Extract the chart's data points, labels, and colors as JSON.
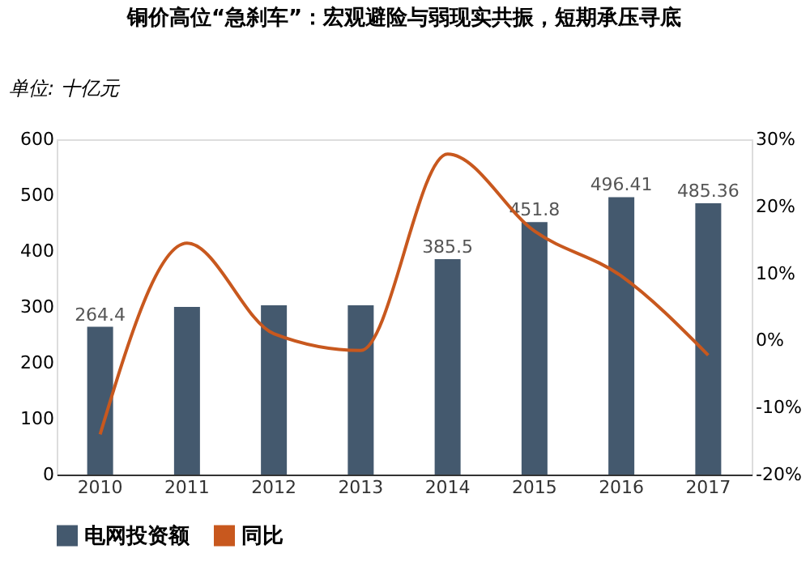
{
  "chart_data": {
    "type": "bar",
    "title": "铜价高位“急刹车”：宏观避险与弱现实共振，短期承压寻底",
    "ylabel": "单位: 十亿元",
    "categories": [
      "2010",
      "2011",
      "2012",
      "2013",
      "2014",
      "2015",
      "2016",
      "2017"
    ],
    "series": [
      {
        "name": "电网投资额",
        "color": "#44596e",
        "values": [
          264.4,
          300,
          303,
          303,
          385.5,
          451.8,
          496.41,
          485.36
        ],
        "value_labels": [
          "264.4",
          null,
          null,
          null,
          "385.5",
          "451.8",
          "496.41",
          "485.36"
        ]
      },
      {
        "name": "同比",
        "type": "line",
        "axis": "y2",
        "color": "#c8581e",
        "values": [
          -14,
          14.5,
          1,
          -1.5,
          27.8,
          16.3,
          9.6,
          -2.2
        ]
      }
    ],
    "ylim": [
      0,
      600
    ],
    "yticks": [
      0,
      100,
      200,
      300,
      400,
      500,
      600
    ],
    "y2lim": [
      -20,
      30
    ],
    "y2ticks": [
      {
        "value": -20,
        "label": "-20%"
      },
      {
        "value": -10,
        "label": "-10%"
      },
      {
        "value": 0,
        "label": "0%"
      },
      {
        "value": 10,
        "label": "10%"
      },
      {
        "value": 20,
        "label": "20%"
      },
      {
        "value": 30,
        "label": "30%"
      }
    ],
    "grid": false,
    "legend": "bottom"
  }
}
